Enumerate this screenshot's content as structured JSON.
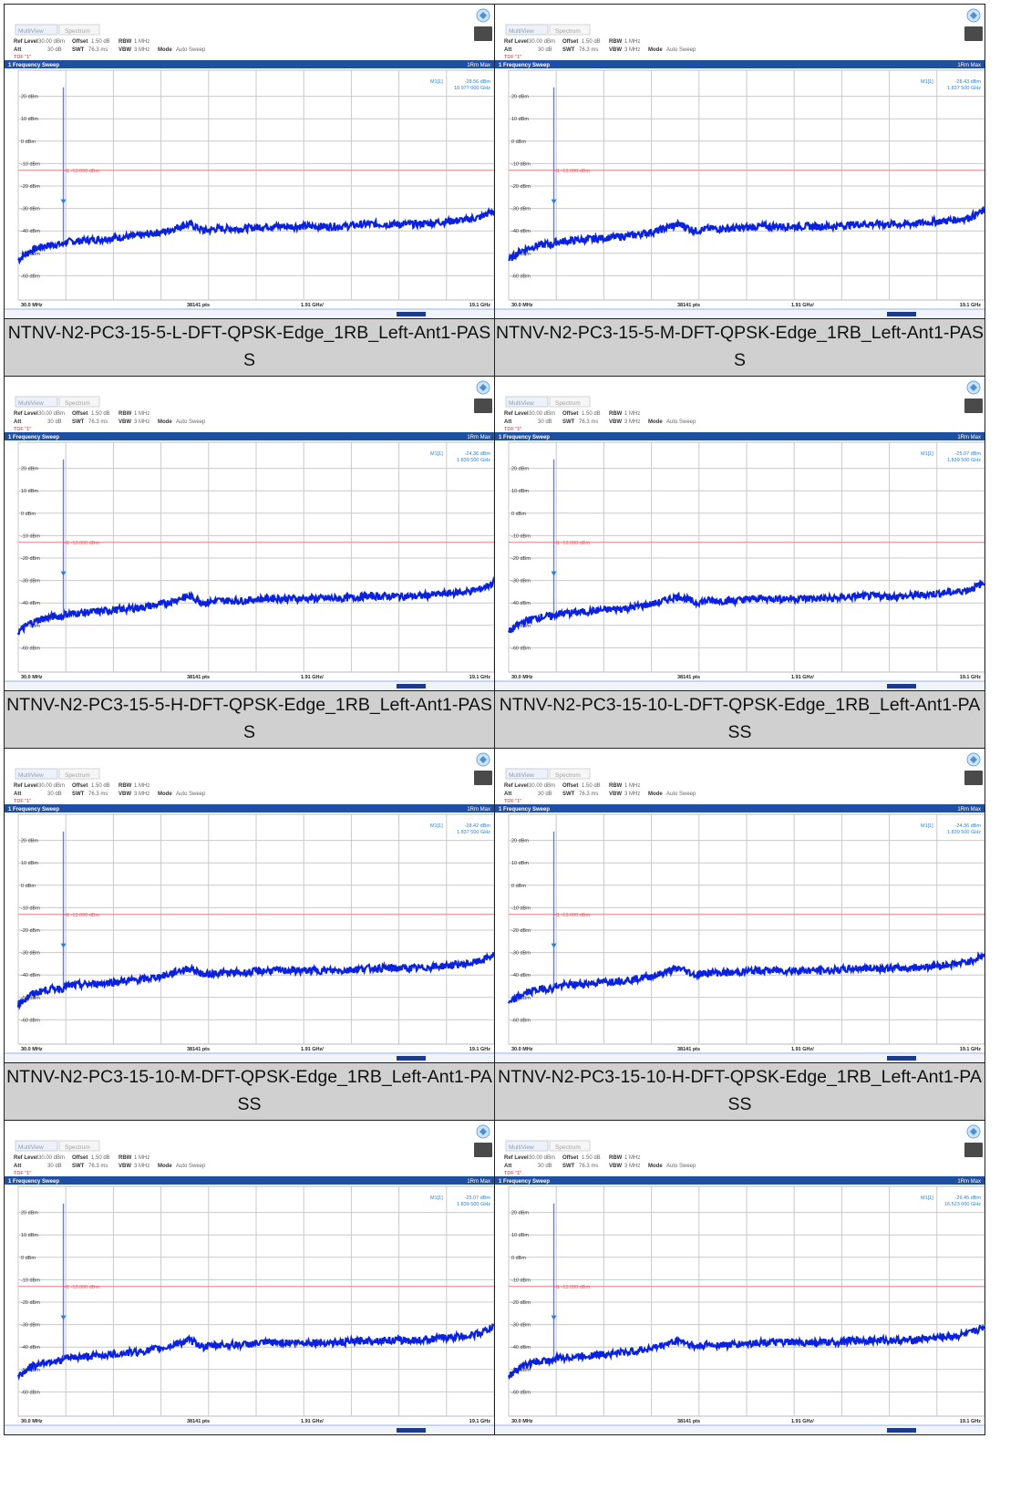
{
  "common": {
    "tab_main": "MultiView",
    "tab_spec": "Spectrum",
    "ref_level_label": "Ref Level",
    "ref_level_value": "30.00 dBm",
    "offset_label": "Offset",
    "offset_value": "1.50 dB",
    "rbw_label": "RBW",
    "rbw_value": "1 MHz",
    "att_label": "Att",
    "att_value": "30 dB",
    "swt_label": "SWT",
    "swt_value": "76.3 ms",
    "vbw_label": "VBW",
    "vbw_value": "3 MHz",
    "mode_label": "Mode",
    "mode_value": "Auto Sweep",
    "tdf_label": "TDF \"1\"",
    "sweep_title": "1 Frequency Sweep",
    "trace_label": "1Rm Max",
    "limit_label": "H1 -13.000 dBm",
    "marker_name": "M1[1]",
    "x_start": "30.0 MHz",
    "points": "38141 pts",
    "x_step": "1.91 GHz/",
    "x_stop": "19.1 GHz",
    "y_ticks": [
      "20 dBm",
      "10 dBm",
      "0 dBm",
      "-10 dBm",
      "-20 dBm",
      "-30 dBm",
      "-40 dBm",
      "-50 dBm",
      "-60 dBm"
    ],
    "colors": {
      "header_bar": "#1f4fa0",
      "trace": "#0a22e0",
      "limit": "#e88080",
      "marker_text": "#2a7fd8",
      "grid": "#c9c9c9"
    }
  },
  "panels": [
    {
      "caption": "NTNV-N2-PC3-15-5-L-DFT-QPSK-Edge_1RB_Left-Ant1-PASS",
      "marker_level": "-28.56 dBm",
      "marker_freq": "18.977 000 GHz"
    },
    {
      "caption": "NTNV-N2-PC3-15-5-M-DFT-QPSK-Edge_1RB_Left-Ant1-PASS",
      "marker_level": "-28.43 dBm",
      "marker_freq": "1.837 500 GHz"
    },
    {
      "caption": "NTNV-N2-PC3-15-5-H-DFT-QPSK-Edge_1RB_Left-Ant1-PASS",
      "marker_level": "-24.36 dBm",
      "marker_freq": "1.839 500 GHz"
    },
    {
      "caption": "NTNV-N2-PC3-15-10-L-DFT-QPSK-Edge_1RB_Left-Ant1-PASS",
      "marker_level": "-25.07 dBm",
      "marker_freq": "1.839 500 GHz"
    },
    {
      "caption": "NTNV-N2-PC3-15-10-M-DFT-QPSK-Edge_1RB_Left-Ant1-PASS",
      "marker_level": "-28.42 dBm",
      "marker_freq": "1.837 500 GHz"
    },
    {
      "caption": "NTNV-N2-PC3-15-10-H-DFT-QPSK-Edge_1RB_Left-Ant1-PASS",
      "marker_level": "-24.36 dBm",
      "marker_freq": "1.839 500 GHz"
    },
    {
      "caption": "",
      "marker_level": "-25.07 dBm",
      "marker_freq": "1.839 500 GHz"
    },
    {
      "caption": "",
      "marker_level": "-29.45 dBm",
      "marker_freq": "16.523 000 GHz"
    }
  ],
  "chart_data": {
    "type": "line",
    "title": "1 Frequency Sweep",
    "xlabel": "",
    "ylabel": "",
    "xlim": [
      0.03,
      19.1
    ],
    "ylim": [
      -70,
      30
    ],
    "limit_line": -13,
    "grid": true,
    "series": [
      {
        "x": [
          0.03,
          0.5,
          1.0,
          1.5,
          1.84,
          1.9,
          3.0,
          4.0,
          5.0,
          6.0,
          6.5,
          6.9,
          7.5,
          8.0,
          9.0,
          10.0,
          11.0,
          12.0,
          13.0,
          14.0,
          15.0,
          16.0,
          17.0,
          18.0,
          18.5,
          19.1
        ],
        "values": [
          -53,
          -49,
          -47,
          -46,
          24,
          -45,
          -44,
          -43,
          -42,
          -40,
          -38,
          -37,
          -40,
          -39,
          -39,
          -38,
          -38,
          -38,
          -38,
          -37,
          -37,
          -37,
          -36,
          -35,
          -34,
          -31
        ]
      }
    ]
  }
}
